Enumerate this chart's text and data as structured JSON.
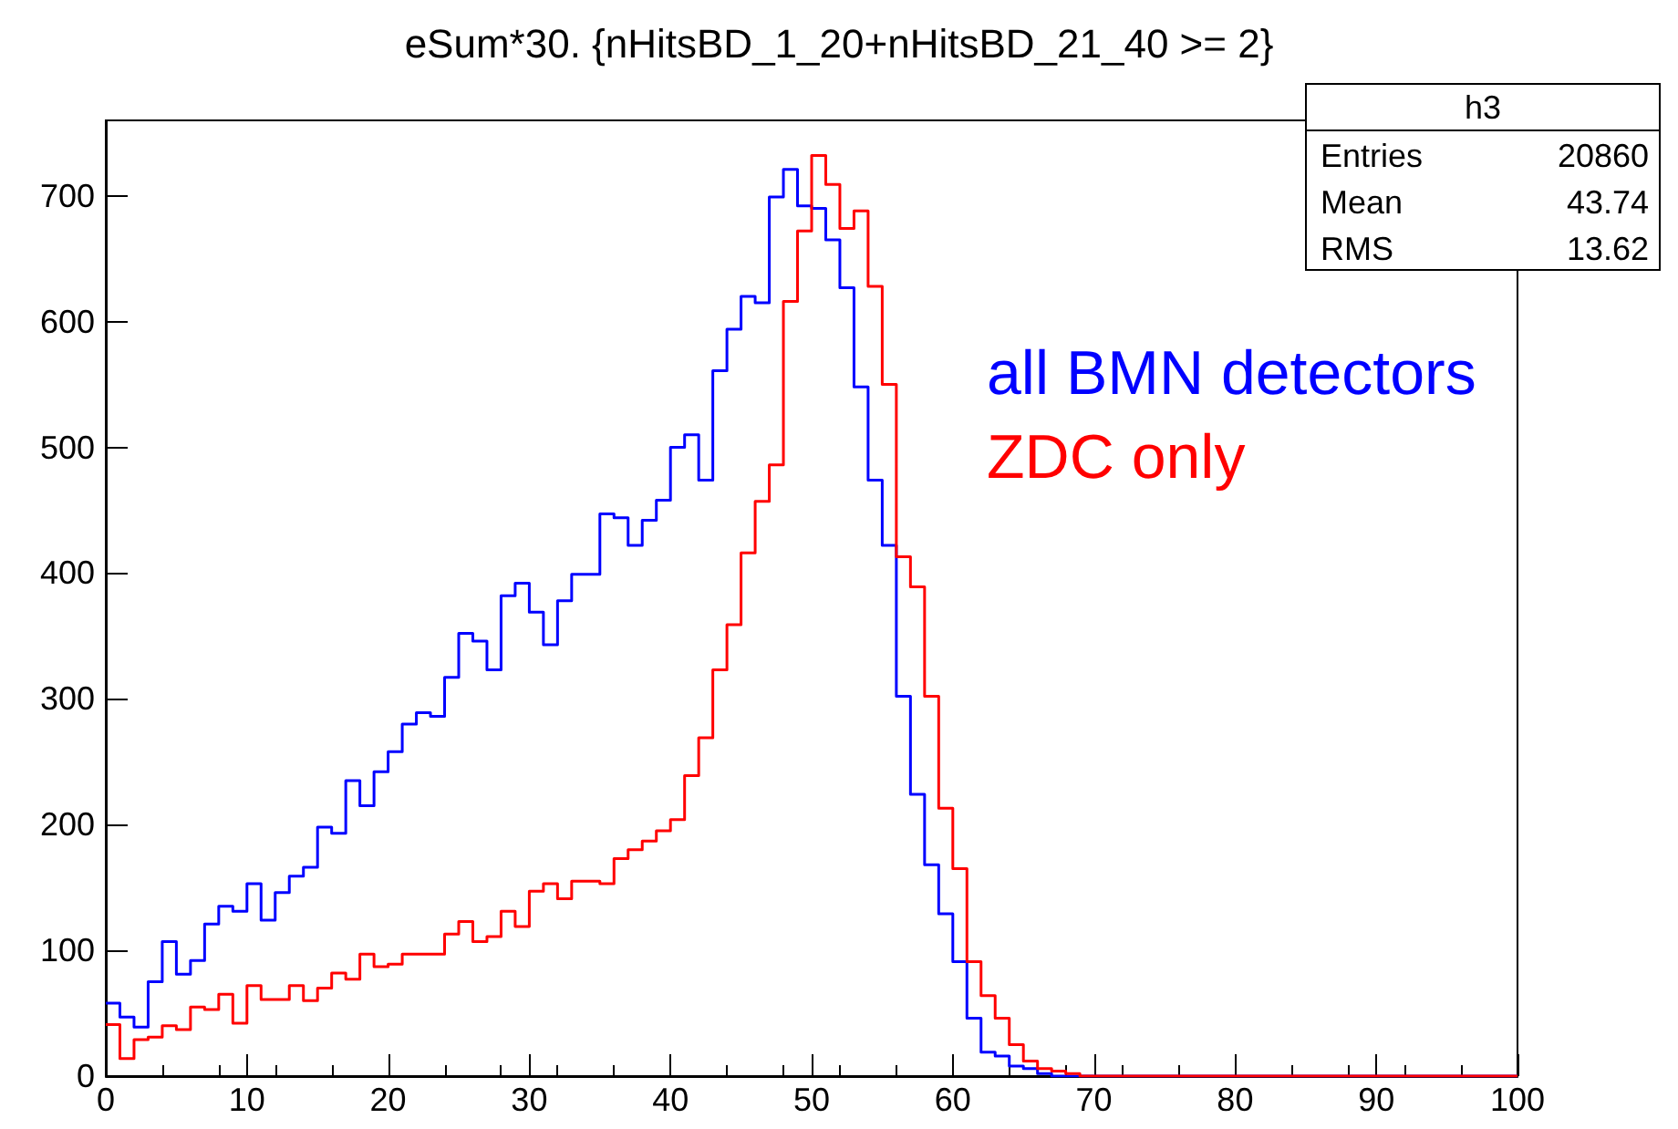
{
  "chart_data": {
    "type": "histogram",
    "title": "eSum*30. {nHitsBD_1_20+nHitsBD_21_40 >= 2}",
    "bins": [
      0,
      1,
      2,
      3,
      4,
      5,
      6,
      7,
      8,
      9,
      10,
      11,
      12,
      13,
      14,
      15,
      16,
      17,
      18,
      19,
      20,
      21,
      22,
      23,
      24,
      25,
      26,
      27,
      28,
      29,
      30,
      31,
      32,
      33,
      34,
      35,
      36,
      37,
      38,
      39,
      40,
      41,
      42,
      43,
      44,
      45,
      46,
      47,
      48,
      49,
      50,
      51,
      52,
      53,
      54,
      55,
      56,
      57,
      58,
      59,
      60,
      61,
      62,
      63,
      64,
      65,
      66,
      67,
      68,
      69,
      70,
      71,
      72,
      73,
      74,
      75,
      76,
      77,
      78,
      79,
      80,
      81,
      82,
      83,
      84,
      85,
      86,
      87,
      88,
      89,
      90,
      91,
      92,
      93,
      94,
      95,
      96,
      97,
      98,
      99,
      100
    ],
    "series": [
      {
        "name": "all BMN detectors",
        "color": "#0000ff",
        "values": [
          58,
          47,
          39,
          75,
          107,
          81,
          92,
          121,
          135,
          131,
          153,
          124,
          146,
          159,
          166,
          198,
          193,
          235,
          215,
          242,
          258,
          280,
          289,
          286,
          317,
          352,
          346,
          323,
          382,
          392,
          369,
          343,
          378,
          399,
          399,
          447,
          444,
          422,
          442,
          458,
          500,
          510,
          474,
          561,
          594,
          620,
          615,
          699,
          721,
          692,
          690,
          665,
          627,
          548,
          474,
          422,
          302,
          224,
          168,
          129,
          91,
          46,
          19,
          16,
          8,
          6,
          2,
          0,
          0,
          0,
          0,
          0,
          0,
          0,
          0,
          0,
          0,
          0,
          0,
          0,
          0,
          0,
          0,
          0,
          0,
          0,
          0,
          0,
          0,
          0,
          0,
          0,
          0,
          0,
          0,
          0,
          0,
          0,
          0,
          0
        ]
      },
      {
        "name": "ZDC only",
        "color": "#ff0000",
        "values": [
          41,
          14,
          29,
          31,
          40,
          37,
          55,
          53,
          65,
          42,
          72,
          61,
          61,
          72,
          60,
          70,
          82,
          77,
          97,
          87,
          89,
          97,
          97,
          97,
          113,
          123,
          107,
          111,
          131,
          119,
          147,
          153,
          141,
          155,
          155,
          153,
          173,
          180,
          187,
          195,
          204,
          239,
          269,
          323,
          359,
          416,
          457,
          486,
          616,
          672,
          732,
          709,
          674,
          688,
          628,
          550,
          413,
          389,
          302,
          213,
          165,
          91,
          64,
          46,
          25,
          12,
          6,
          4,
          2,
          0,
          0,
          0,
          0,
          0,
          0,
          0,
          0,
          0,
          0,
          0,
          0,
          0,
          0,
          0,
          0,
          0,
          0,
          0,
          0,
          0,
          0,
          0,
          0,
          0,
          0,
          0,
          0,
          0,
          0,
          0
        ]
      }
    ],
    "xlim": [
      0,
      100
    ],
    "xticks": [
      0,
      10,
      20,
      30,
      40,
      50,
      60,
      70,
      80,
      90,
      100
    ],
    "ylim": [
      0,
      760
    ],
    "yticks": [
      0,
      100,
      200,
      300,
      400,
      500,
      600,
      700
    ],
    "grid": false,
    "legend": false,
    "annotations": [
      "h3",
      "Entries 20860",
      "Mean 43.74",
      "RMS 13.62"
    ]
  }
}
